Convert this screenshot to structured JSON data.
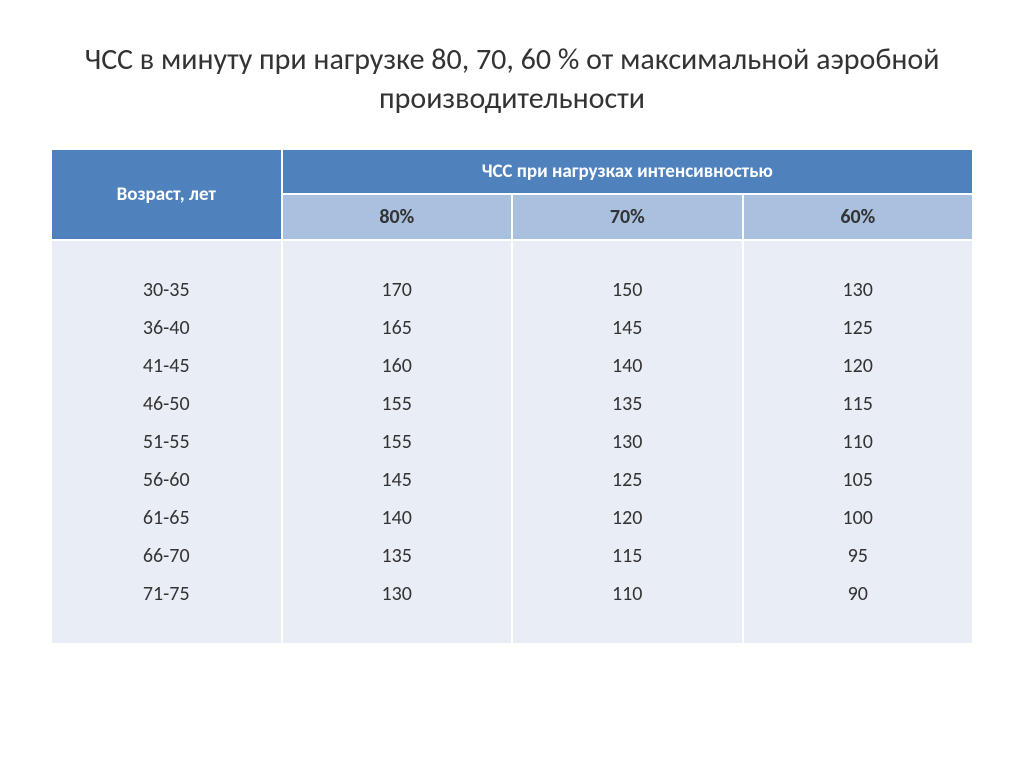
{
  "title": "ЧСС в минуту при нагрузке 80, 70, 60 % от максимальной аэробной производительности",
  "table": {
    "header_age": "Возраст, лет",
    "header_main": "ЧСС при нагрузках интенсивностью",
    "sub_headers": [
      "80%",
      "70%",
      "60%"
    ],
    "ages": [
      "30-35",
      "36-40",
      "41-45",
      "46-50",
      "51-55",
      "56-60",
      "61-65",
      "66-70",
      "71-75"
    ],
    "col80": [
      "170",
      "165",
      "160",
      "155",
      "155",
      "145",
      "140",
      "135",
      "130"
    ],
    "col70": [
      "150",
      "145",
      "140",
      "135",
      "130",
      "125",
      "120",
      "115",
      "110"
    ],
    "col60": [
      "130",
      "125",
      "120",
      "115",
      "110",
      "105",
      "100",
      "95",
      "90"
    ],
    "colors": {
      "header_bg": "#4f81bd",
      "header_text": "#ffffff",
      "subheader_bg": "#a9c0de",
      "data_bg": "#e9eef6",
      "data_text": "#333333",
      "border": "#ffffff"
    },
    "fontsize_header": 19,
    "fontsize_data": 20,
    "col_widths_percent": [
      25,
      25,
      25,
      25
    ]
  }
}
